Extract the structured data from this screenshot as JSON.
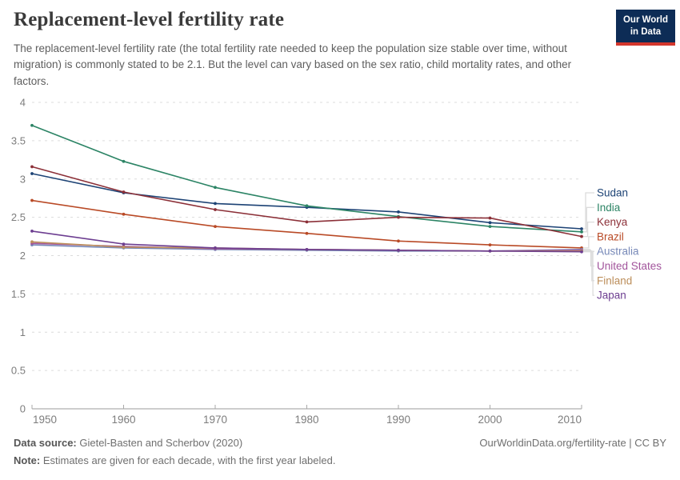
{
  "header": {
    "title": "Replacement-level fertility rate",
    "subtitle": "The replacement-level fertility rate (the total fertility rate needed to keep the population size stable over time, without migration) is commonly stated to be 2.1. But the level can vary based on the sex ratio, child mortality rates, and other factors.",
    "logo_line1": "Our World",
    "logo_line2": "in Data",
    "logo_bg": "#0d2c56",
    "logo_stripe": "#d3362c"
  },
  "chart_data": {
    "type": "line",
    "x": [
      1950,
      1960,
      1970,
      1980,
      1990,
      2000,
      2010
    ],
    "xticks": [
      "1950",
      "1960",
      "1970",
      "1980",
      "1990",
      "2000",
      "2010"
    ],
    "yticks": [
      0,
      0.5,
      1,
      1.5,
      2,
      2.5,
      3,
      3.5,
      4
    ],
    "ylim": [
      0,
      4
    ],
    "xlim": [
      1950,
      2010
    ],
    "grid": true,
    "legend_position": "right",
    "series": [
      {
        "name": "Sudan",
        "color": "#1d4375",
        "values": [
          3.07,
          2.82,
          2.68,
          2.63,
          2.57,
          2.43,
          2.35
        ]
      },
      {
        "name": "India",
        "color": "#2c8465",
        "values": [
          3.7,
          3.23,
          2.89,
          2.65,
          2.51,
          2.38,
          2.31
        ]
      },
      {
        "name": "Kenya",
        "color": "#8c3038",
        "values": [
          3.16,
          2.83,
          2.6,
          2.44,
          2.5,
          2.49,
          2.25
        ]
      },
      {
        "name": "Brazil",
        "color": "#b94a26",
        "values": [
          2.72,
          2.54,
          2.38,
          2.29,
          2.19,
          2.14,
          2.1
        ]
      },
      {
        "name": "Australia",
        "color": "#7789b8",
        "values": [
          2.14,
          2.1,
          2.08,
          2.07,
          2.06,
          2.06,
          2.08
        ]
      },
      {
        "name": "United States",
        "color": "#a2559c",
        "values": [
          2.16,
          2.12,
          2.09,
          2.08,
          2.07,
          2.06,
          2.07
        ]
      },
      {
        "name": "Finland",
        "color": "#bc8e5a",
        "values": [
          2.18,
          2.11,
          2.1,
          2.08,
          2.07,
          2.06,
          2.06
        ]
      },
      {
        "name": "Japan",
        "color": "#6d3e91",
        "values": [
          2.32,
          2.15,
          2.1,
          2.08,
          2.07,
          2.06,
          2.05
        ]
      }
    ]
  },
  "footer": {
    "source_label": "Data source:",
    "source_text": " Gietel-Basten and Scherbov (2020)",
    "credit": "OurWorldinData.org/fertility-rate | CC BY",
    "note_label": "Note:",
    "note_text": " Estimates are given for each decade, with the first year labeled."
  }
}
